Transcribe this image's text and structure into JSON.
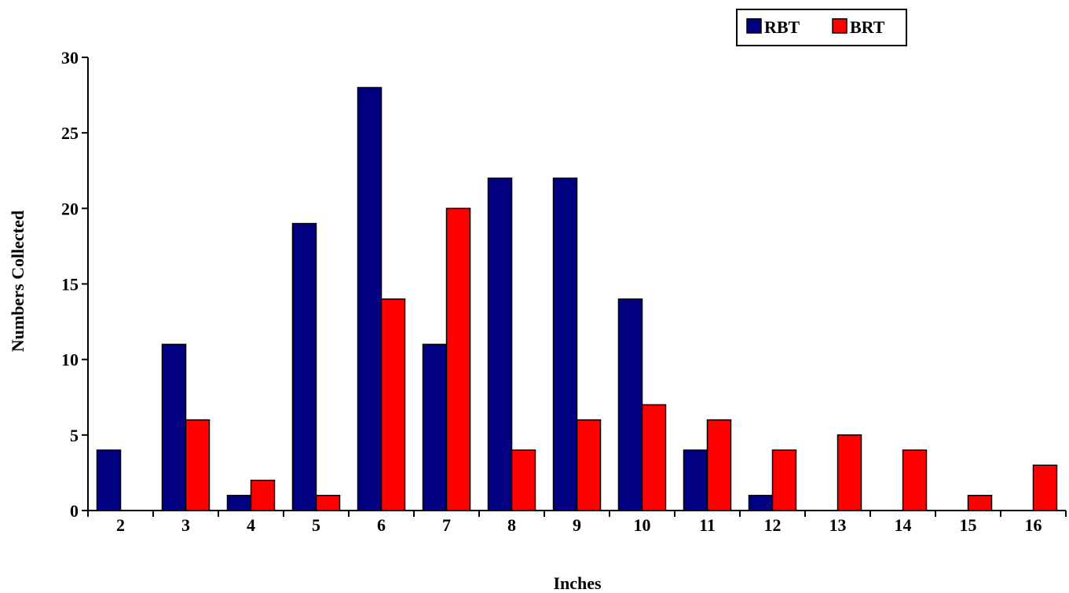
{
  "chart_data": {
    "type": "bar",
    "title": "",
    "xlabel": "Inches",
    "ylabel": "Numbers Collected",
    "categories": [
      "2",
      "3",
      "4",
      "5",
      "6",
      "7",
      "8",
      "9",
      "10",
      "11",
      "12",
      "13",
      "14",
      "15",
      "16"
    ],
    "series": [
      {
        "name": "RBT",
        "color": "#000080",
        "values": [
          4,
          11,
          1,
          19,
          28,
          11,
          22,
          22,
          14,
          4,
          1,
          0,
          0,
          0,
          0
        ]
      },
      {
        "name": "BRT",
        "color": "#ff0000",
        "values": [
          0,
          6,
          2,
          1,
          14,
          20,
          4,
          6,
          7,
          6,
          4,
          5,
          4,
          1,
          3
        ]
      }
    ],
    "ylim": [
      0,
      30
    ],
    "yticks": [
      0,
      5,
      10,
      15,
      20,
      25,
      30
    ],
    "grid": false,
    "legend_position": "top-right"
  }
}
